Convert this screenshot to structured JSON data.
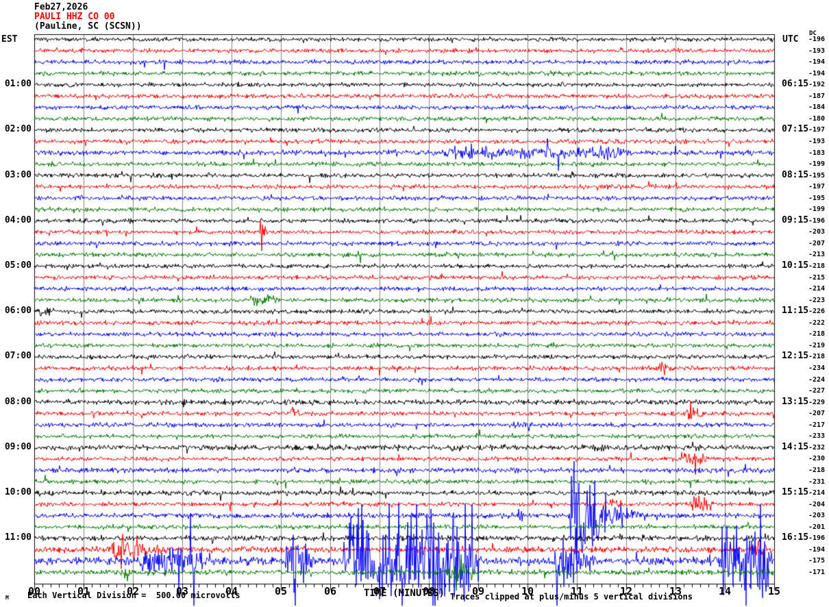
{
  "header": {
    "date": "Feb27,2026",
    "station": "PAULI HHZ CO 00",
    "location": "(Pauline, SC (SCSN))"
  },
  "left_axis": {
    "tz_label": "EST",
    "hours": [
      "01:00",
      "02:00",
      "03:00",
      "04:00",
      "05:00",
      "06:00",
      "07:00",
      "08:00",
      "09:00",
      "10:00",
      "11:00"
    ]
  },
  "right_axis": {
    "tz_label": "UTC",
    "dc_label": "DC",
    "hours": [
      "06:15",
      "07:15",
      "08:15",
      "09:15",
      "10:15",
      "11:15",
      "12:15",
      "13:15",
      "14:15",
      "15:15",
      "16:15"
    ]
  },
  "x_axis": {
    "labels": [
      "00",
      "01",
      "02",
      "03",
      "04",
      "05",
      "06",
      "07",
      "08",
      "09",
      "10",
      "11",
      "12",
      "13",
      "14",
      "15"
    ],
    "title": "TIME (MINUTES)",
    "minutes_span": 15,
    "minor_ticks_per_minute": 6
  },
  "footer": {
    "marker": "M",
    "left": "Each Vertical Division =  500.00 microvolts",
    "right": "Traces clipped at plus/minus 5 vertical divisions"
  },
  "colors": {
    "black": "#000000",
    "red": "#ff0000",
    "blue": "#0000ff",
    "green": "#007700",
    "grid": "#808080",
    "background": "#ffffff"
  },
  "chart_data": {
    "type": "line",
    "subtype": "helicorder-seismogram",
    "row_duration_minutes": 15,
    "rows_per_hour": 4,
    "x_range_minutes": [
      0,
      15
    ],
    "clip_divisions": 5,
    "division_microvolts": 500,
    "trace_color_cycle": [
      "black",
      "red",
      "blue",
      "green"
    ],
    "rows": [
      {
        "color": "black",
        "dc": -196
      },
      {
        "color": "red",
        "dc": -193
      },
      {
        "color": "blue",
        "dc": -194
      },
      {
        "color": "green",
        "dc": -194
      },
      {
        "color": "black",
        "dc": -192
      },
      {
        "color": "red",
        "dc": -187
      },
      {
        "color": "blue",
        "dc": -184
      },
      {
        "color": "green",
        "dc": -180
      },
      {
        "color": "black",
        "dc": -197
      },
      {
        "color": "red",
        "dc": -193
      },
      {
        "color": "blue",
        "dc": -183,
        "amp": 2.6
      },
      {
        "color": "green",
        "dc": -199
      },
      {
        "color": "black",
        "dc": -195
      },
      {
        "color": "red",
        "dc": -197
      },
      {
        "color": "blue",
        "dc": -195
      },
      {
        "color": "green",
        "dc": -199
      },
      {
        "color": "black",
        "dc": -196
      },
      {
        "color": "red",
        "dc": -203
      },
      {
        "color": "blue",
        "dc": -207
      },
      {
        "color": "green",
        "dc": -213
      },
      {
        "color": "black",
        "dc": -218
      },
      {
        "color": "red",
        "dc": -215
      },
      {
        "color": "blue",
        "dc": -214
      },
      {
        "color": "green",
        "dc": -223
      },
      {
        "color": "black",
        "dc": -226
      },
      {
        "color": "red",
        "dc": -222
      },
      {
        "color": "blue",
        "dc": -218
      },
      {
        "color": "green",
        "dc": -219
      },
      {
        "color": "black",
        "dc": -218
      },
      {
        "color": "red",
        "dc": -234
      },
      {
        "color": "blue",
        "dc": -224
      },
      {
        "color": "green",
        "dc": -227
      },
      {
        "color": "black",
        "dc": -229,
        "amp": 2.6
      },
      {
        "color": "red",
        "dc": -207
      },
      {
        "color": "blue",
        "dc": -217
      },
      {
        "color": "green",
        "dc": -233
      },
      {
        "color": "black",
        "dc": -232,
        "amp": 2.8
      },
      {
        "color": "red",
        "dc": -230
      },
      {
        "color": "blue",
        "dc": -218,
        "amp": 2.6
      },
      {
        "color": "green",
        "dc": -231
      },
      {
        "color": "black",
        "dc": -214,
        "amp": 2.6
      },
      {
        "color": "red",
        "dc": -204
      },
      {
        "color": "blue",
        "dc": -203,
        "amp": 2.6
      },
      {
        "color": "green",
        "dc": -201
      },
      {
        "color": "black",
        "dc": -196,
        "amp": 2.8
      },
      {
        "color": "red",
        "dc": -194,
        "amp": 3.0
      },
      {
        "color": "blue",
        "dc": -175,
        "amp": 4.0
      },
      {
        "color": "green",
        "dc": -171,
        "amp": 2.8
      }
    ],
    "events": [
      {
        "row": 11,
        "start": 8.0,
        "end": 12.3,
        "amp": 6,
        "kind": "band"
      },
      {
        "row": 18,
        "start": 4.55,
        "end": 4.72,
        "amp": 12,
        "kind": "spike"
      },
      {
        "row": 24,
        "start": 4.35,
        "end": 5.0,
        "amp": 6,
        "kind": "band"
      },
      {
        "row": 25,
        "start": 0.0,
        "end": 0.45,
        "amp": 5,
        "kind": "band"
      },
      {
        "row": 30,
        "start": 12.6,
        "end": 12.95,
        "amp": 9,
        "kind": "burst"
      },
      {
        "row": 33,
        "start": 2.98,
        "end": 3.12,
        "amp": 9,
        "kind": "spike"
      },
      {
        "row": 34,
        "start": 5.15,
        "end": 5.45,
        "amp": 7,
        "kind": "burst"
      },
      {
        "row": 34,
        "start": 13.2,
        "end": 13.6,
        "amp": 7,
        "kind": "band"
      },
      {
        "row": 35,
        "start": 9.6,
        "end": 10.2,
        "amp": 5,
        "kind": "band"
      },
      {
        "row": 38,
        "start": 13.0,
        "end": 13.7,
        "amp": 7,
        "kind": "band"
      },
      {
        "row": 39,
        "start": 7.28,
        "end": 7.45,
        "amp": 14,
        "kind": "spike"
      },
      {
        "row": 42,
        "start": 11.5,
        "end": 12.0,
        "amp": 5,
        "kind": "band"
      },
      {
        "row": 42,
        "start": 13.25,
        "end": 13.9,
        "amp": 10,
        "kind": "burst"
      },
      {
        "row": 43,
        "start": 9.78,
        "end": 9.95,
        "amp": 14,
        "kind": "spike"
      },
      {
        "row": 43,
        "start": 10.82,
        "end": 12.5,
        "amp": 70,
        "kind": "quake"
      },
      {
        "row": 46,
        "start": 1.55,
        "end": 3.3,
        "amp": 24,
        "kind": "quake"
      },
      {
        "row": 46,
        "start": 14.55,
        "end": 14.95,
        "amp": 9,
        "kind": "burst"
      },
      {
        "row": 47,
        "start": 2.1,
        "end": 3.5,
        "amp": 16,
        "kind": "band"
      },
      {
        "row": 47,
        "start": 5.05,
        "end": 5.6,
        "amp": 40,
        "kind": "burst"
      },
      {
        "row": 47,
        "start": 6.2,
        "end": 9.1,
        "amp": 45,
        "kind": "band"
      },
      {
        "row": 47,
        "start": 10.5,
        "end": 11.7,
        "amp": 55,
        "kind": "quake"
      },
      {
        "row": 47,
        "start": 13.85,
        "end": 15.0,
        "amp": 35,
        "kind": "band"
      },
      {
        "row": 48,
        "start": 1.8,
        "end": 2.0,
        "amp": 11,
        "kind": "burst"
      },
      {
        "row": 48,
        "start": 8.35,
        "end": 8.95,
        "amp": 9,
        "kind": "band"
      }
    ]
  }
}
